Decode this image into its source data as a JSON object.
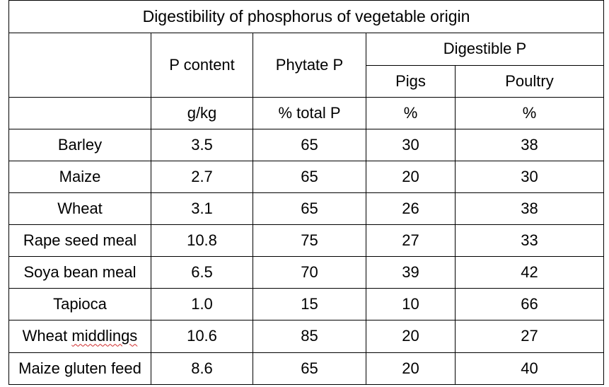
{
  "table": {
    "title": "Digestibility of phosphorus of vegetable origin",
    "headers": {
      "p_content": "P content",
      "phytate_p": "Phytate P",
      "digestible_p": "Digestible P",
      "pigs": "Pigs",
      "poultry": "Poultry"
    },
    "units": [
      "g/kg",
      "% total P",
      "%",
      "%"
    ],
    "rows": [
      {
        "name": "Barley",
        "values": [
          "3.5",
          "65",
          "30",
          "38"
        ]
      },
      {
        "name": "Maize",
        "values": [
          "2.7",
          "65",
          "20",
          "30"
        ]
      },
      {
        "name": "Wheat",
        "values": [
          "3.1",
          "65",
          "26",
          "38"
        ]
      },
      {
        "name": "Rape seed meal",
        "values": [
          "10.8",
          "75",
          "27",
          "33"
        ]
      },
      {
        "name": "Soya bean meal",
        "values": [
          "6.5",
          "70",
          "39",
          "42"
        ]
      },
      {
        "name": "Tapioca",
        "values": [
          "1.0",
          "15",
          "10",
          "66"
        ]
      },
      {
        "name_prefix": "Wheat ",
        "name_underlined": "middlings",
        "values": [
          "10.6",
          "85",
          "20",
          "27"
        ]
      },
      {
        "name": "Maize gluten feed",
        "values": [
          "8.6",
          "65",
          "20",
          "40"
        ]
      }
    ]
  }
}
